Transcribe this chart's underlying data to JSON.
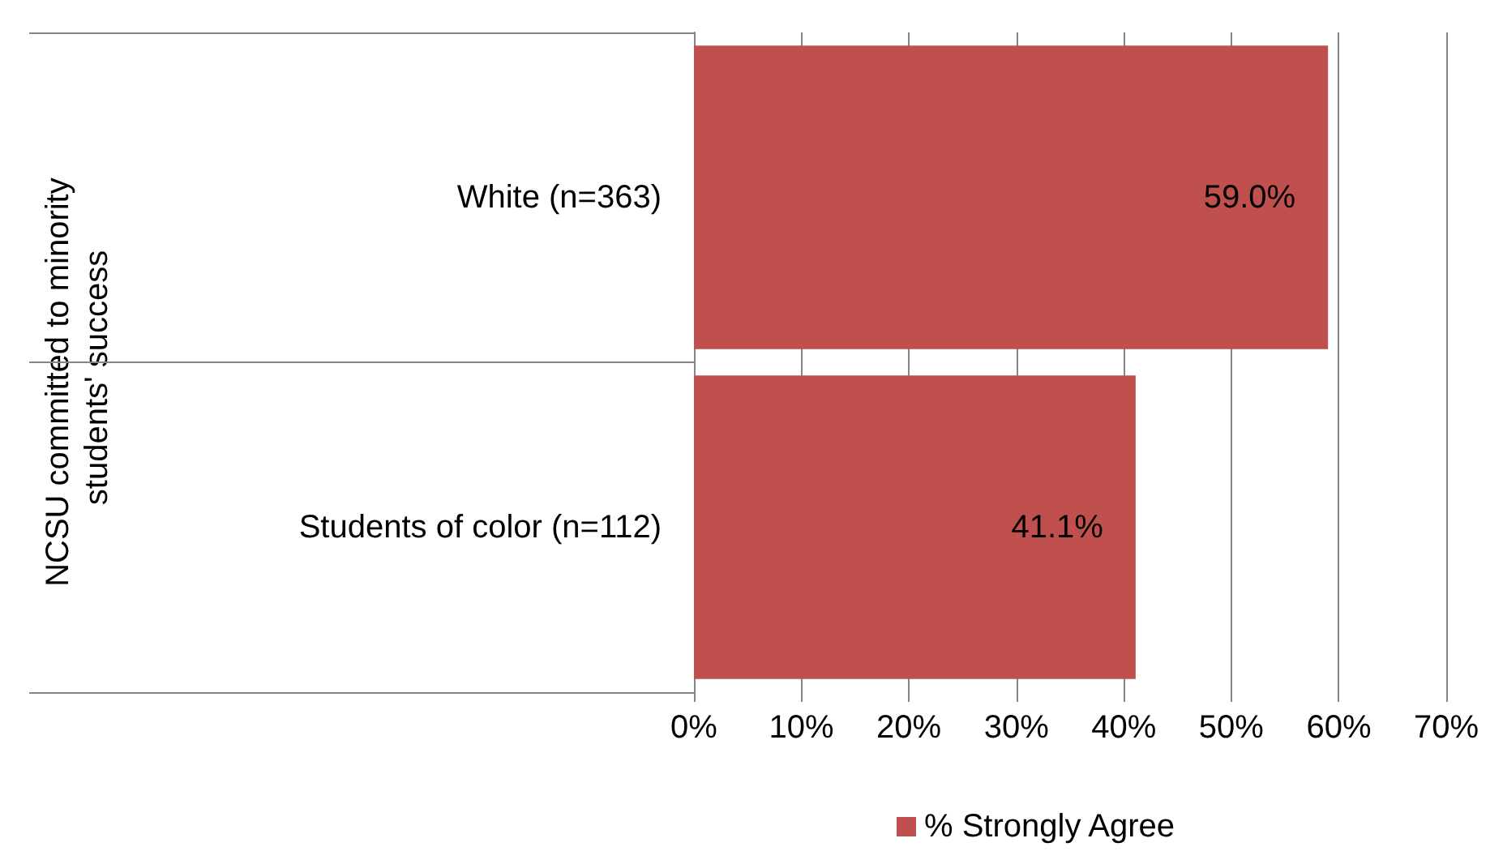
{
  "chart_data": {
    "type": "bar",
    "orientation": "horizontal",
    "annotations": [
      "NCSU committed to minority students' success"
    ],
    "categories": [
      "White (n=363)",
      "Students of color (n=112)"
    ],
    "series": [
      {
        "name": "% Strongly Agree",
        "color": "#c0504d",
        "values": [
          59.0,
          41.1
        ],
        "value_labels": [
          "59.0%",
          "41.1%"
        ]
      }
    ],
    "xlim": [
      0,
      70
    ],
    "xticks": [
      {
        "value": 0,
        "label": "0%"
      },
      {
        "value": 10,
        "label": "10%"
      },
      {
        "value": 20,
        "label": "20%"
      },
      {
        "value": 30,
        "label": "30%"
      },
      {
        "value": 40,
        "label": "40%"
      },
      {
        "value": 50,
        "label": "50%"
      },
      {
        "value": 60,
        "label": "60%"
      },
      {
        "value": 70,
        "label": "70%"
      }
    ],
    "grid": "x",
    "legend": "bottom"
  }
}
